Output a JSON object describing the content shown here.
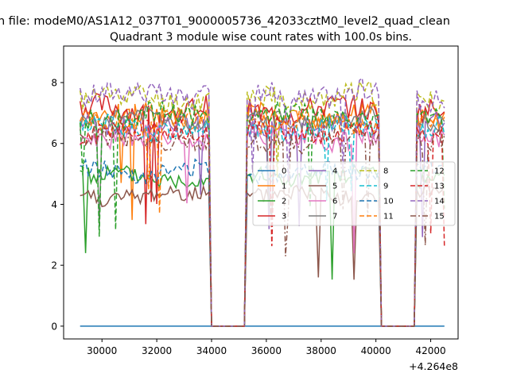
{
  "chart_data": {
    "type": "line",
    "suptitle": "n file: modeM0/AS1A12_037T01_9000005736_42033cztM0_level2_quad_clean",
    "title": "Quadrant 3 module wise count rates with 100.0s bins.",
    "xlabel": "",
    "ylabel": "",
    "x_offset_label": "+4.264e8",
    "xlim": [
      28600,
      43000
    ],
    "ylim": [
      -0.42,
      9.2
    ],
    "xticks": [
      30000,
      32000,
      34000,
      36000,
      38000,
      40000,
      42000
    ],
    "xtick_labels": [
      "30000",
      "32000",
      "34000",
      "36000",
      "38000",
      "40000",
      "42000"
    ],
    "yticks": [
      0,
      2,
      4,
      6,
      8
    ],
    "ytick_labels": [
      "0",
      "2",
      "4",
      "6",
      "8"
    ],
    "grid": false,
    "legend_placement": "center-right, 4 columns",
    "gaps": [
      [
        34000,
        35200
      ],
      [
        40150,
        41400
      ]
    ],
    "time_range": [
      29200,
      42500
    ],
    "series": [
      {
        "name": "0",
        "color": "#1f77b4",
        "dash": "solid",
        "base": 0.0,
        "noise": 0.0,
        "flat": true
      },
      {
        "name": "1",
        "color": "#ff7f0e",
        "dash": "solid",
        "base": 6.9,
        "noise": 0.35
      },
      {
        "name": "2",
        "color": "#2ca02c",
        "dash": "solid",
        "base": 4.9,
        "noise": 0.3
      },
      {
        "name": "3",
        "color": "#d62728",
        "dash": "solid",
        "base": 7.1,
        "noise": 0.4
      },
      {
        "name": "4",
        "color": "#9467bd",
        "dash": "solid",
        "base": 6.6,
        "noise": 0.35
      },
      {
        "name": "5",
        "color": "#8c564b",
        "dash": "solid",
        "base": 4.3,
        "noise": 0.3
      },
      {
        "name": "6",
        "color": "#e377c2",
        "dash": "solid",
        "base": 6.2,
        "noise": 0.35
      },
      {
        "name": "7",
        "color": "#7f7f7f",
        "dash": "solid",
        "base": 6.8,
        "noise": 0.3
      },
      {
        "name": "8",
        "color": "#bcbd22",
        "dash": "dashed",
        "base": 7.5,
        "noise": 0.4
      },
      {
        "name": "9",
        "color": "#17becf",
        "dash": "dashed",
        "base": 6.5,
        "noise": 0.35
      },
      {
        "name": "10",
        "color": "#1f77b4",
        "dash": "dashed",
        "base": 5.1,
        "noise": 0.3
      },
      {
        "name": "11",
        "color": "#ff7f0e",
        "dash": "dashed",
        "base": 6.7,
        "noise": 0.35
      },
      {
        "name": "12",
        "color": "#2ca02c",
        "dash": "dashed",
        "base": 6.9,
        "noise": 0.35
      },
      {
        "name": "13",
        "color": "#d62728",
        "dash": "dashed",
        "base": 6.4,
        "noise": 0.35
      },
      {
        "name": "14",
        "color": "#9467bd",
        "dash": "dashed",
        "base": 7.6,
        "noise": 0.4
      },
      {
        "name": "15",
        "color": "#8c564b",
        "dash": "dashdot",
        "base": 6.1,
        "noise": 0.35
      }
    ]
  }
}
